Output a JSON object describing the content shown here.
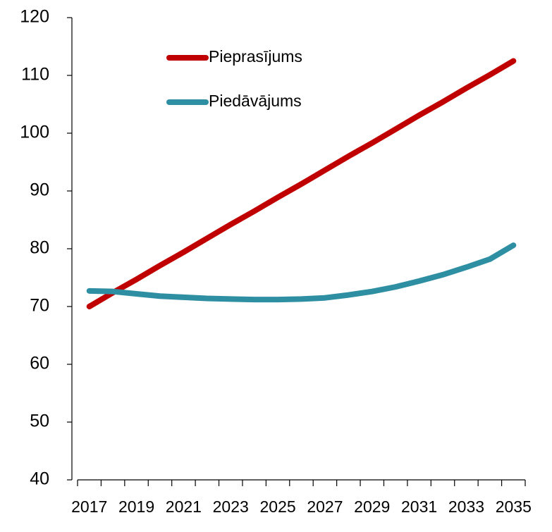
{
  "chart_data": {
    "type": "line",
    "categories": [
      "2017",
      null,
      "2019",
      null,
      "2021",
      null,
      "2023",
      null,
      "2025",
      null,
      "2027",
      null,
      "2029",
      null,
      "2031",
      null,
      "2033",
      null,
      "2035"
    ],
    "series": [
      {
        "name": "Pieprasījums",
        "color": "#c00000",
        "values": [
          70,
          72.4,
          74.7,
          77.1,
          79.4,
          81.8,
          84.2,
          86.5,
          88.9,
          91.2,
          93.6,
          96.0,
          98.3,
          100.7,
          103.1,
          105.4,
          107.8,
          110.1,
          112.5
        ]
      },
      {
        "name": "Piedāvājums",
        "color": "#2e8fa3",
        "values": [
          72.7,
          72.6,
          72.2,
          71.8,
          71.6,
          71.4,
          71.3,
          71.2,
          71.2,
          71.3,
          71.5,
          72.0,
          72.6,
          73.4,
          74.4,
          75.5,
          76.8,
          78.2,
          80.6
        ]
      }
    ],
    "ylim": [
      40,
      120
    ],
    "yticks": [
      40,
      50,
      60,
      70,
      80,
      90,
      100,
      110,
      120
    ],
    "legend": "upper left",
    "grid": false
  }
}
